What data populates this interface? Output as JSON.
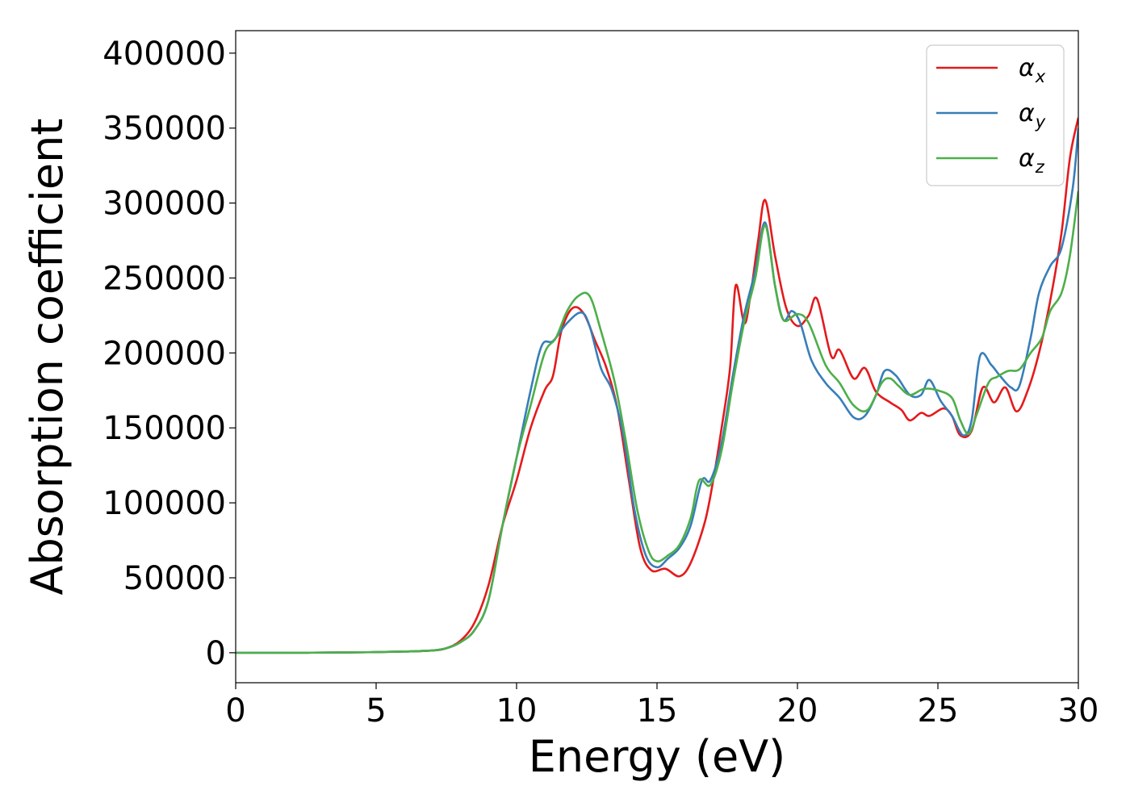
{
  "chart_data": {
    "type": "line",
    "title": "",
    "xlabel": "Energy (eV)",
    "ylabel": "Absorption coefficient",
    "xlim": [
      0,
      30
    ],
    "ylim": [
      -20000,
      415000
    ],
    "xticks": [
      0,
      5,
      10,
      15,
      20,
      25,
      30
    ],
    "yticks": [
      0,
      50000,
      100000,
      150000,
      200000,
      250000,
      300000,
      350000,
      400000
    ],
    "grid": false,
    "legend_position": "top-right",
    "series": [
      {
        "name": "α",
        "subscript": "x",
        "color": "#e41a1c",
        "points": [
          [
            0,
            0
          ],
          [
            2,
            0
          ],
          [
            4,
            200
          ],
          [
            5,
            400
          ],
          [
            6,
            800
          ],
          [
            7,
            1500
          ],
          [
            7.5,
            3000
          ],
          [
            8,
            8000
          ],
          [
            8.5,
            20000
          ],
          [
            9,
            45000
          ],
          [
            9.5,
            85000
          ],
          [
            10,
            115000
          ],
          [
            10.5,
            150000
          ],
          [
            11,
            175000
          ],
          [
            11.3,
            185000
          ],
          [
            11.6,
            215000
          ],
          [
            12,
            230000
          ],
          [
            12.4,
            226000
          ],
          [
            12.8,
            208000
          ],
          [
            13.2,
            190000
          ],
          [
            13.6,
            162000
          ],
          [
            14,
            115000
          ],
          [
            14.4,
            70000
          ],
          [
            14.8,
            55000
          ],
          [
            15.3,
            56000
          ],
          [
            15.8,
            51000
          ],
          [
            16.2,
            60000
          ],
          [
            16.7,
            87000
          ],
          [
            17,
            115000
          ],
          [
            17.3,
            150000
          ],
          [
            17.6,
            190000
          ],
          [
            17.8,
            245000
          ],
          [
            18.1,
            220000
          ],
          [
            18.3,
            235000
          ],
          [
            18.6,
            275000
          ],
          [
            18.85,
            302000
          ],
          [
            19.2,
            265000
          ],
          [
            19.6,
            230000
          ],
          [
            20,
            218000
          ],
          [
            20.4,
            225000
          ],
          [
            20.7,
            236000
          ],
          [
            21.2,
            198000
          ],
          [
            21.5,
            202000
          ],
          [
            22,
            183000
          ],
          [
            22.4,
            190000
          ],
          [
            22.8,
            174000
          ],
          [
            23.3,
            167000
          ],
          [
            23.7,
            162000
          ],
          [
            24,
            155000
          ],
          [
            24.4,
            160000
          ],
          [
            24.7,
            158000
          ],
          [
            25.2,
            163000
          ],
          [
            25.5,
            158000
          ],
          [
            25.8,
            145000
          ],
          [
            26.2,
            148000
          ],
          [
            26.6,
            177000
          ],
          [
            27,
            167000
          ],
          [
            27.4,
            177000
          ],
          [
            27.8,
            161000
          ],
          [
            28.2,
            175000
          ],
          [
            28.6,
            200000
          ],
          [
            29,
            235000
          ],
          [
            29.4,
            280000
          ],
          [
            29.7,
            330000
          ],
          [
            30,
            357000
          ]
        ]
      },
      {
        "name": "α",
        "subscript": "y",
        "color": "#377eb8",
        "points": [
          [
            0,
            0
          ],
          [
            2,
            0
          ],
          [
            4,
            200
          ],
          [
            5,
            400
          ],
          [
            6,
            800
          ],
          [
            7,
            1500
          ],
          [
            7.5,
            3000
          ],
          [
            8,
            7000
          ],
          [
            8.5,
            15000
          ],
          [
            9,
            35000
          ],
          [
            9.5,
            85000
          ],
          [
            10,
            130000
          ],
          [
            10.5,
            175000
          ],
          [
            10.9,
            205000
          ],
          [
            11.3,
            208000
          ],
          [
            11.8,
            220000
          ],
          [
            12.3,
            227000
          ],
          [
            12.6,
            218000
          ],
          [
            13,
            190000
          ],
          [
            13.4,
            175000
          ],
          [
            13.8,
            145000
          ],
          [
            14.2,
            95000
          ],
          [
            14.6,
            65000
          ],
          [
            15,
            57000
          ],
          [
            15.4,
            63000
          ],
          [
            15.8,
            70000
          ],
          [
            16.2,
            85000
          ],
          [
            16.6,
            115000
          ],
          [
            16.9,
            115000
          ],
          [
            17.3,
            140000
          ],
          [
            17.7,
            185000
          ],
          [
            18.1,
            225000
          ],
          [
            18.5,
            255000
          ],
          [
            18.85,
            287000
          ],
          [
            19.2,
            245000
          ],
          [
            19.5,
            222000
          ],
          [
            19.8,
            228000
          ],
          [
            20.1,
            220000
          ],
          [
            20.5,
            195000
          ],
          [
            21,
            180000
          ],
          [
            21.5,
            170000
          ],
          [
            22,
            157000
          ],
          [
            22.4,
            158000
          ],
          [
            22.8,
            172000
          ],
          [
            23.1,
            188000
          ],
          [
            23.5,
            185000
          ],
          [
            24,
            172000
          ],
          [
            24.4,
            172000
          ],
          [
            24.7,
            182000
          ],
          [
            25.1,
            168000
          ],
          [
            25.5,
            158000
          ],
          [
            25.9,
            145000
          ],
          [
            26.2,
            155000
          ],
          [
            26.5,
            198000
          ],
          [
            26.9,
            192000
          ],
          [
            27.2,
            185000
          ],
          [
            27.6,
            177000
          ],
          [
            27.9,
            178000
          ],
          [
            28.3,
            210000
          ],
          [
            28.6,
            240000
          ],
          [
            29,
            258000
          ],
          [
            29.4,
            270000
          ],
          [
            29.8,
            310000
          ],
          [
            30,
            350000
          ]
        ]
      },
      {
        "name": "α",
        "subscript": "z",
        "color": "#4daf4a",
        "points": [
          [
            0,
            0
          ],
          [
            2,
            0
          ],
          [
            4,
            200
          ],
          [
            5,
            400
          ],
          [
            6,
            800
          ],
          [
            7,
            1500
          ],
          [
            7.5,
            3000
          ],
          [
            8,
            7000
          ],
          [
            8.5,
            15000
          ],
          [
            9,
            35000
          ],
          [
            9.5,
            85000
          ],
          [
            10,
            130000
          ],
          [
            10.5,
            165000
          ],
          [
            11,
            200000
          ],
          [
            11.4,
            210000
          ],
          [
            11.8,
            228000
          ],
          [
            12.2,
            238000
          ],
          [
            12.6,
            238000
          ],
          [
            13,
            215000
          ],
          [
            13.5,
            180000
          ],
          [
            13.9,
            140000
          ],
          [
            14.3,
            95000
          ],
          [
            14.7,
            68000
          ],
          [
            15,
            61000
          ],
          [
            15.4,
            65000
          ],
          [
            15.8,
            72000
          ],
          [
            16.2,
            90000
          ],
          [
            16.5,
            115000
          ],
          [
            16.9,
            112000
          ],
          [
            17.3,
            135000
          ],
          [
            17.7,
            180000
          ],
          [
            18.1,
            220000
          ],
          [
            18.5,
            250000
          ],
          [
            18.85,
            285000
          ],
          [
            19.2,
            245000
          ],
          [
            19.5,
            222000
          ],
          [
            20,
            226000
          ],
          [
            20.4,
            220000
          ],
          [
            21,
            192000
          ],
          [
            21.5,
            180000
          ],
          [
            22,
            165000
          ],
          [
            22.5,
            162000
          ],
          [
            23,
            180000
          ],
          [
            23.3,
            183000
          ],
          [
            23.6,
            178000
          ],
          [
            24,
            172000
          ],
          [
            24.5,
            176000
          ],
          [
            25,
            175000
          ],
          [
            25.5,
            170000
          ],
          [
            25.8,
            155000
          ],
          [
            26.1,
            146000
          ],
          [
            26.4,
            160000
          ],
          [
            26.8,
            180000
          ],
          [
            27.1,
            184000
          ],
          [
            27.5,
            188000
          ],
          [
            27.9,
            189000
          ],
          [
            28.3,
            200000
          ],
          [
            28.7,
            210000
          ],
          [
            29,
            228000
          ],
          [
            29.4,
            240000
          ],
          [
            29.7,
            265000
          ],
          [
            30,
            308000
          ]
        ]
      }
    ]
  }
}
